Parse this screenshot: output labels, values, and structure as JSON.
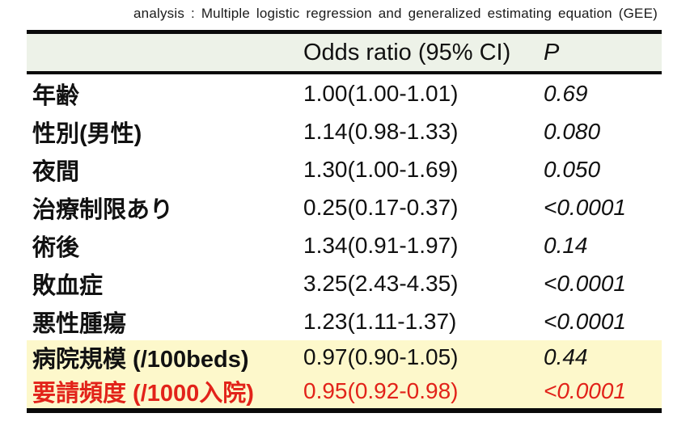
{
  "caption": "analysis : Multiple logistic regression and generalized estimating equation (GEE)",
  "table": {
    "header": {
      "variable": "",
      "odds_ratio": "Odds ratio (95% CI)",
      "p": "P"
    },
    "rows": [
      {
        "label": "年齢",
        "odds_ratio": "1.00(1.00-1.01)",
        "p": "0.69",
        "highlight": false,
        "red": false
      },
      {
        "label": "性別(男性)",
        "odds_ratio": "1.14(0.98-1.33)",
        "p": "0.080",
        "highlight": false,
        "red": false
      },
      {
        "label": "夜間",
        "odds_ratio": "1.30(1.00-1.69)",
        "p": "0.050",
        "highlight": false,
        "red": false
      },
      {
        "label": "治療制限あり",
        "odds_ratio": "0.25(0.17-0.37)",
        "p": "<0.0001",
        "highlight": false,
        "red": false
      },
      {
        "label": "術後",
        "odds_ratio": "1.34(0.91-1.97)",
        "p": "0.14",
        "highlight": false,
        "red": false
      },
      {
        "label": "敗血症",
        "odds_ratio": "3.25(2.43-4.35)",
        "p": "<0.0001",
        "highlight": false,
        "red": false
      },
      {
        "label": "悪性腫瘍",
        "odds_ratio": "1.23(1.11-1.37)",
        "p": "<0.0001",
        "highlight": false,
        "red": false
      },
      {
        "label": "病院規模 (/100beds)",
        "odds_ratio": "0.97(0.90-1.05)",
        "p": "0.44",
        "highlight": true,
        "red": false
      },
      {
        "label": "要請頻度 (/1000入院)",
        "odds_ratio": "0.95(0.92-0.98)",
        "p": "<0.0001",
        "highlight": true,
        "red": true
      }
    ]
  },
  "colors": {
    "header_bg": "#edf2e8",
    "highlight_bg": "#fdf8cb",
    "red_text": "#e2231a",
    "rule_black": "#0a0a0a"
  }
}
